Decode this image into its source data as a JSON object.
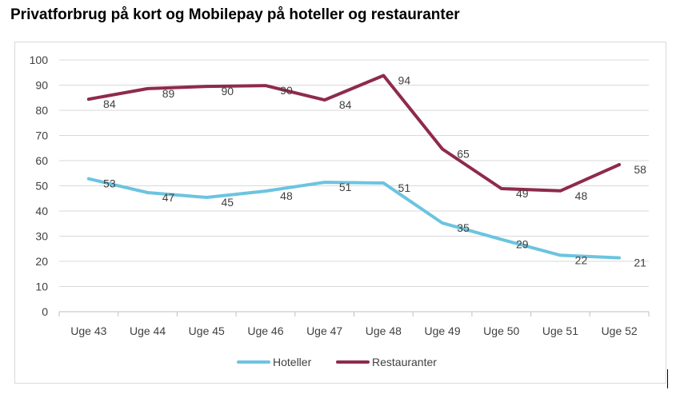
{
  "chart_data": {
    "type": "line",
    "title": "Privatforbrug på kort og Mobilepay på hoteller og restauranter",
    "categories": [
      "Uge 43",
      "Uge 44",
      "Uge 45",
      "Uge 46",
      "Uge 47",
      "Uge 48",
      "Uge 49",
      "Uge 50",
      "Uge 51",
      "Uge 52"
    ],
    "series": [
      {
        "name": "Hoteller",
        "color": "#6CC4DF",
        "values": [
          52.8,
          47.3,
          45.4,
          47.9,
          51.4,
          51.1,
          35.2,
          28.7,
          22.4,
          21.4
        ],
        "labels": [
          "53",
          "47",
          "45",
          "48",
          "51",
          "51",
          "35",
          "29",
          "22",
          "21"
        ]
      },
      {
        "name": "Restauranter",
        "color": "#8E2B4A",
        "values": [
          84.4,
          88.6,
          89.5,
          89.8,
          84.1,
          93.8,
          64.6,
          48.9,
          48.0,
          58.4
        ],
        "labels": [
          "84",
          "89",
          "90",
          "90",
          "84",
          "94",
          "65",
          "49",
          "48",
          "58"
        ]
      }
    ],
    "y_ticks": [
      "0",
      "10",
      "20",
      "30",
      "40",
      "50",
      "60",
      "70",
      "80",
      "90",
      "100"
    ],
    "ylim": [
      0,
      100
    ],
    "grid": true,
    "legend_position": "bottom"
  }
}
